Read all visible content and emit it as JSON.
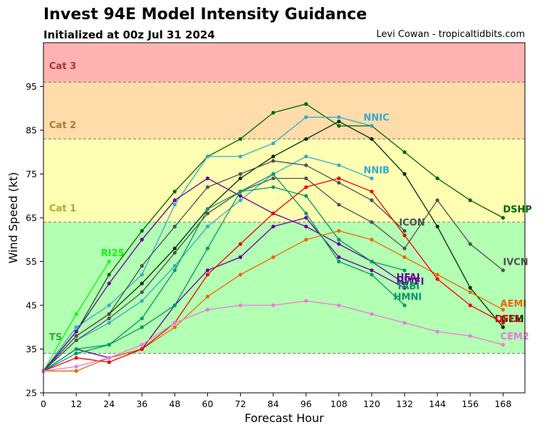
{
  "chart_data": {
    "type": "line",
    "title": "Invest 94E Model Intensity Guidance",
    "subtitle": "Initialized at 00z Jul 31 2024",
    "credit": "Levi Cowan - tropicaltidbits.com",
    "xlabel": "Forecast Hour",
    "ylabel": "Wind Speed (kt)",
    "xlim": [
      0,
      176
    ],
    "ylim": [
      25,
      105
    ],
    "xticks": [
      0,
      12,
      24,
      36,
      48,
      60,
      72,
      84,
      96,
      108,
      120,
      132,
      144,
      156,
      168
    ],
    "yticks": [
      25,
      35,
      45,
      55,
      65,
      75,
      85,
      95
    ],
    "bands": [
      {
        "label": "TS",
        "from": 34,
        "to": 64,
        "color": "#b3ffb3",
        "label_color": "#33aa33",
        "label_value": 37
      },
      {
        "label": "Cat 1",
        "from": 64,
        "to": 83,
        "color": "#ffffb3",
        "label_color": "#aaaa33",
        "label_value": 66.5
      },
      {
        "label": "Cat 2",
        "from": 83,
        "to": 96,
        "color": "#ffdcaa",
        "label_color": "#aa7a33",
        "label_value": 85.5
      },
      {
        "label": "Cat 3",
        "from": 96,
        "to": 105,
        "color": "#ffb3b3",
        "label_color": "#aa3333",
        "label_value": 99
      }
    ],
    "series": [
      {
        "name": "RI25",
        "color": "#00ff00",
        "x": [
          0,
          12,
          24
        ],
        "y": [
          30,
          43,
          55
        ],
        "label_value": [
          21,
          57
        ]
      },
      {
        "name": "DSHP",
        "color": "#006400",
        "x": [
          0,
          12,
          24,
          36,
          48,
          60,
          72,
          84,
          96,
          108,
          120,
          132,
          144,
          156,
          168
        ],
        "y": [
          30,
          39,
          52,
          62,
          71,
          79,
          83,
          89,
          91,
          86,
          86,
          80,
          74,
          69,
          65
        ],
        "label_value": [
          168,
          67
        ]
      },
      {
        "name": "LGEM",
        "color": "#003000",
        "x": [
          0,
          12,
          24,
          36,
          48,
          60,
          72,
          84,
          96,
          108,
          120,
          132,
          144,
          156,
          168
        ],
        "y": [
          30,
          38,
          43,
          50,
          58,
          67,
          74,
          79,
          83,
          87,
          83,
          75,
          63,
          49,
          40
        ],
        "label_value": [
          165,
          42
        ]
      },
      {
        "name": "NNIC",
        "color": "#33aacc",
        "x": [
          0,
          12,
          24,
          36,
          48,
          60,
          72,
          84,
          96,
          108,
          120
        ],
        "y": [
          30,
          40,
          45,
          52,
          68,
          79,
          79,
          82,
          88,
          88,
          86
        ],
        "label_value": [
          117,
          88
        ]
      },
      {
        "name": "NNIB",
        "color": "#33aacc",
        "x": [
          0,
          12,
          24,
          36,
          48,
          60,
          72,
          84,
          96,
          108,
          120
        ],
        "y": [
          30,
          37,
          41,
          46,
          54,
          63,
          69,
          75,
          79,
          77,
          74
        ],
        "label_value": [
          117,
          76
        ]
      },
      {
        "name": "ICON",
        "color": "#505050",
        "x": [
          0,
          12,
          24,
          36,
          48,
          60,
          72,
          84,
          96,
          108,
          120,
          132
        ],
        "y": [
          30,
          38,
          43,
          54,
          63,
          72,
          75,
          78,
          77,
          73,
          69,
          62
        ],
        "label_value": [
          130,
          64
        ]
      },
      {
        "name": "IVCN",
        "color": "#505050",
        "x": [
          0,
          12,
          24,
          36,
          48,
          60,
          72,
          84,
          96,
          108,
          120,
          132,
          144,
          156,
          168
        ],
        "y": [
          30,
          37,
          42,
          48,
          57,
          66,
          71,
          74,
          74,
          68,
          64,
          58,
          69,
          59,
          53
        ],
        "label_value": [
          168,
          55
        ]
      },
      {
        "name": "HFAI",
        "color": "#660099",
        "x": [
          0,
          12,
          24,
          36,
          48,
          60,
          72,
          84,
          96,
          108,
          120,
          132
        ],
        "y": [
          30,
          35,
          33,
          35,
          45,
          53,
          56,
          63,
          65,
          56,
          53,
          49
        ],
        "label_value": [
          129,
          51.5
        ]
      },
      {
        "name": "HWFI",
        "color": "#660099",
        "x": [
          0,
          12,
          24,
          36,
          48,
          60,
          72,
          84,
          96,
          108,
          120,
          132
        ],
        "y": [
          30,
          39,
          50,
          60,
          69,
          74,
          70,
          66,
          63,
          59,
          55,
          50
        ],
        "label_value": [
          129,
          50.5
        ]
      },
      {
        "name": "HMNI",
        "color": "#009966",
        "x": [
          0,
          12,
          24,
          36,
          48,
          60,
          72,
          84,
          96,
          108,
          120,
          132
        ],
        "y": [
          30,
          35,
          36,
          40,
          45,
          58,
          71,
          75,
          66,
          55,
          52,
          45
        ],
        "label_value": [
          128,
          47
        ]
      },
      {
        "name": "TABI",
        "color": "#009966",
        "x": [
          0,
          12,
          24,
          36,
          48,
          60,
          72,
          84,
          96,
          108,
          120,
          132
        ],
        "y": [
          30,
          34,
          36,
          42,
          53,
          67,
          71,
          72,
          70,
          60,
          55,
          53
        ],
        "label_value": [
          129,
          49.5
        ]
      },
      {
        "name": "AEMI",
        "color": "#ee6600",
        "x": [
          0,
          12,
          24,
          36,
          48,
          60,
          72,
          84,
          96,
          108,
          120,
          132,
          144,
          156,
          168
        ],
        "y": [
          30,
          30,
          33,
          35,
          40,
          47,
          52,
          56,
          60,
          62,
          60,
          56,
          52,
          48,
          44
        ],
        "label_value": [
          167,
          45.5
        ]
      },
      {
        "name": "OFCL",
        "color": "#ee0000",
        "x": [
          0,
          12,
          24,
          36,
          48,
          60,
          72,
          84,
          96,
          108,
          120,
          132,
          144,
          156,
          168
        ],
        "y": [
          30,
          33,
          32,
          35,
          41,
          52,
          59,
          66,
          72,
          74,
          71,
          61,
          51,
          45,
          41
        ],
        "label_value": [
          165,
          42
        ]
      },
      {
        "name": "CEM2",
        "color": "#ee77dd",
        "x": [
          0,
          12,
          24,
          36,
          48,
          60,
          72,
          84,
          96,
          108,
          120,
          132,
          144,
          156,
          168
        ],
        "y": [
          30,
          31,
          33,
          36,
          41,
          44,
          45,
          45,
          46,
          45,
          43,
          41,
          39,
          38,
          36
        ],
        "label_value": [
          167,
          38
        ]
      }
    ]
  }
}
